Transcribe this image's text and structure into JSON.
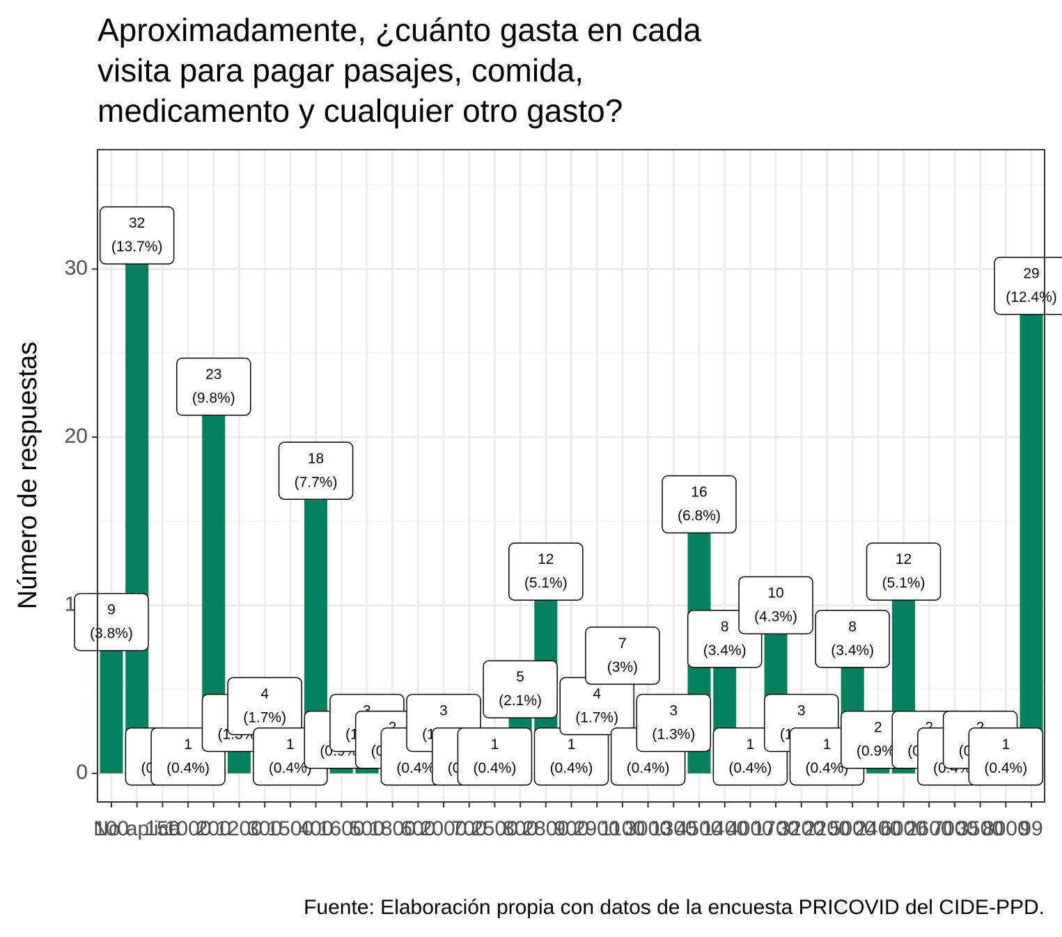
{
  "chart_data": {
    "type": "bar",
    "title": "Aproximadamente, ¿cuánto gasta en cada\nvisita para pagar pasajes, comida,\nmedicamento y cualquier otro gasto?",
    "y_label": "Número de respuestas",
    "caption": "Fuente: Elaboración propia con datos de la encuesta PRICOVID del CIDE-PPD.",
    "categories": [
      "100",
      "No aplica",
      "150",
      "1000",
      "200",
      "1200",
      "300",
      "1500",
      "400",
      "1600",
      "500",
      "1800",
      "600",
      "2000",
      "700",
      "2500",
      "800",
      "2800",
      "900",
      "2900",
      "1100",
      "3000",
      "1300",
      "4500",
      "1400",
      "4000",
      "1700",
      "3200",
      "2200",
      "5000",
      "2400",
      "6000",
      "2600",
      "7000",
      "3500",
      "8000",
      "99"
    ],
    "values": [
      9,
      32,
      1,
      1,
      23,
      3,
      4,
      1,
      18,
      2,
      3,
      2,
      1,
      3,
      1,
      1,
      5,
      12,
      1,
      4,
      7,
      1,
      3,
      16,
      8,
      1,
      10,
      3,
      1,
      8,
      2,
      12,
      2,
      1,
      2,
      1,
      29
    ],
    "value_labels": [
      "9\n(3.8%)",
      "32\n(13.7%)",
      "1\n(0.4%)",
      "1\n(0.4%)",
      "23\n(9.8%)",
      "3\n(1.3%)",
      "4\n(1.7%)",
      "1\n(0.4%)",
      "18\n(7.7%)",
      "2\n(0.9%)",
      "3\n(1.3%)",
      "2\n(0.9%)",
      "1\n(0.4%)",
      "3\n(1.3%)",
      "1\n(0.4%)",
      "1\n(0.4%)",
      "5\n(2.1%)",
      "12\n(5.1%)",
      "1\n(0.4%)",
      "4\n(1.7%)",
      "7\n(3%)",
      "1\n(0.4%)",
      "3\n(1.3%)",
      "16\n(6.8%)",
      "8\n(3.4%)",
      "1\n(0.4%)",
      "10\n(4.3%)",
      "3\n(1.3%)",
      "1\n(0.4%)",
      "8\n(3.4%)",
      "2\n(0.9%)",
      "12\n(5.1%)",
      "2\n(0.9%)",
      "1\n(0.4%)",
      "2\n(0.9%)",
      "1\n(0.4%)",
      "29\n(12.4%)"
    ],
    "color": "#00825f",
    "ylim": [
      -1.7,
      37.1
    ],
    "yticks": [
      0,
      10,
      20,
      30
    ],
    "grid": true
  }
}
